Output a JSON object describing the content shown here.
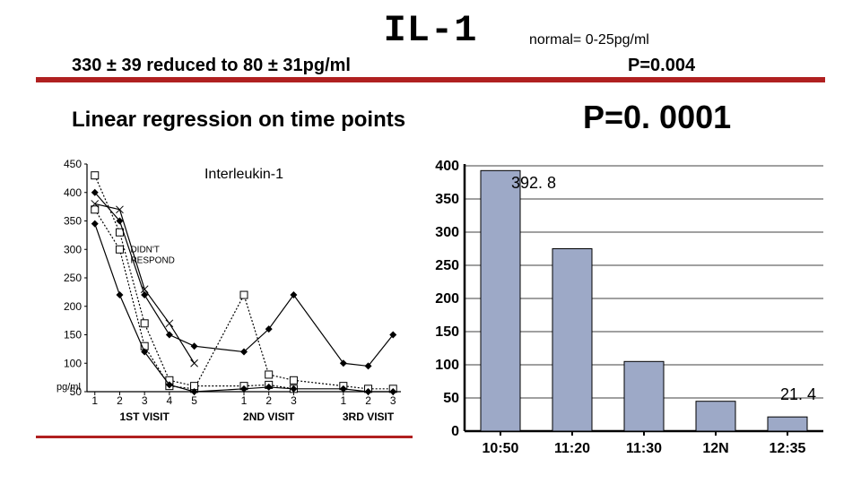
{
  "header": {
    "title": "IL-1",
    "normal": "normal= 0-25pg/ml",
    "subtitle": "330 ± 39 reduced to 80 ± 31pg/ml",
    "pval": "P=0.004"
  },
  "linreg": {
    "label": "Linear regression on time points",
    "pval": "P=0. 0001"
  },
  "linechart": {
    "type": "line",
    "title": "Interleukin-1",
    "ylabel": "pg/ml",
    "ylim": [
      50,
      450
    ],
    "ytick_step": 50,
    "yticks": [
      50,
      100,
      150,
      200,
      250,
      300,
      350,
      400,
      450
    ],
    "x_labels": [
      "1",
      "2",
      "3",
      "4",
      "5",
      "1",
      "2",
      "3",
      "1",
      "2",
      "3"
    ],
    "x_groups": [
      "1ST VISIT",
      "2ND VISIT",
      "3RD VISIT"
    ],
    "group_sizes": [
      5,
      3,
      3
    ],
    "annotation": "DIDN'T\nRESPOND",
    "annotation_pos_index": 1,
    "series": [
      {
        "name": "s1",
        "marker": "square",
        "dash": "2,2",
        "data": [
          370,
          300,
          130,
          60,
          55,
          220,
          80,
          70,
          60,
          55,
          55
        ]
      },
      {
        "name": "s2",
        "marker": "square",
        "dash": "2,2",
        "data": [
          430,
          330,
          170,
          70,
          60,
          60,
          62,
          55,
          null,
          null,
          null
        ]
      },
      {
        "name": "s3",
        "marker": "diamond",
        "dash": "none",
        "data": [
          400,
          350,
          220,
          150,
          130,
          120,
          160,
          220,
          100,
          95,
          150
        ]
      },
      {
        "name": "s4",
        "marker": "x",
        "dash": "none",
        "data": [
          380,
          370,
          230,
          170,
          100,
          null,
          null,
          null,
          null,
          null,
          null
        ]
      },
      {
        "name": "s5",
        "marker": "diamond",
        "dash": "none",
        "data": [
          345,
          220,
          120,
          62,
          50,
          55,
          58,
          55,
          55,
          50,
          50
        ]
      }
    ],
    "axis_color": "#000000",
    "line_color": "#000000",
    "font_size_ticks": 12,
    "font_size_title": 16
  },
  "barchart": {
    "type": "bar",
    "categories": [
      "10:50",
      "11:20",
      "11:30",
      "12N",
      "12:35"
    ],
    "values": [
      392.8,
      275,
      105,
      45,
      21.4
    ],
    "value_labels": [
      "392. 8",
      null,
      null,
      null,
      "21. 4"
    ],
    "bar_color": "#9da9c7",
    "bar_border": "#000000",
    "ylim": [
      0,
      400
    ],
    "yticks": [
      0,
      50,
      100,
      150,
      200,
      250,
      300,
      350,
      400
    ],
    "ytick_step": 50,
    "axis_color": "#000000",
    "grid_color": "#000000",
    "background": "#ffffff",
    "bar_width": 0.55,
    "font_size_ticks": 16,
    "font_weight_xticks": "700"
  }
}
